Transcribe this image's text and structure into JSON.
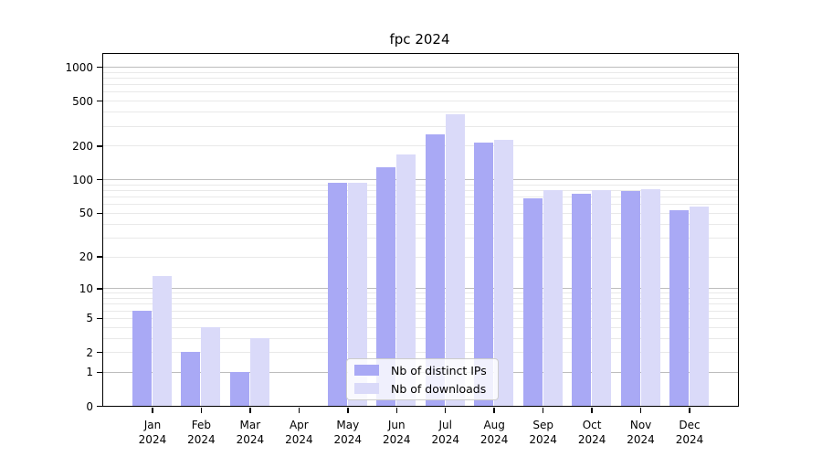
{
  "chart_data": {
    "type": "bar",
    "title": "fpc 2024",
    "scale": "log1p",
    "ylim": [
      0,
      1300
    ],
    "grid": true,
    "legend_position": "lower center",
    "categories": [
      "Jan",
      "Feb",
      "Mar",
      "Apr",
      "May",
      "Jun",
      "Jul",
      "Aug",
      "Sep",
      "Oct",
      "Nov",
      "Dec"
    ],
    "category_year": "2024",
    "series": [
      {
        "name": "Nb of distinct IPs",
        "color": "#a9a9f5",
        "values": [
          6,
          2,
          1,
          0,
          94,
          128,
          252,
          214,
          67,
          75,
          78,
          53
        ]
      },
      {
        "name": "Nb of downloads",
        "color": "#dadaf9",
        "values": [
          13,
          4,
          3,
          0,
          94,
          168,
          378,
          225,
          80,
          80,
          81,
          57
        ]
      }
    ],
    "yticks": [
      {
        "v": 1000,
        "label": "1000"
      },
      {
        "v": 500,
        "label": "500"
      },
      {
        "v": 200,
        "label": "200"
      },
      {
        "v": 100,
        "label": "100"
      },
      {
        "v": 50,
        "label": "50"
      },
      {
        "v": 20,
        "label": "20"
      },
      {
        "v": 10,
        "label": "10"
      },
      {
        "v": 5,
        "label": "5"
      },
      {
        "v": 2,
        "label": "2"
      },
      {
        "v": 1,
        "label": "1"
      },
      {
        "v": 0,
        "label": "0"
      }
    ],
    "major_gridlines": [
      1,
      10,
      100,
      1000
    ],
    "minor_gridlines": [
      2,
      3,
      4,
      5,
      6,
      7,
      8,
      9,
      20,
      30,
      40,
      50,
      60,
      70,
      80,
      90,
      200,
      300,
      400,
      500,
      600,
      700,
      800,
      900
    ]
  },
  "colors": {
    "grid_major": "#bdbdbd",
    "grid_minor": "#e9e9e9",
    "axis": "#000000"
  }
}
